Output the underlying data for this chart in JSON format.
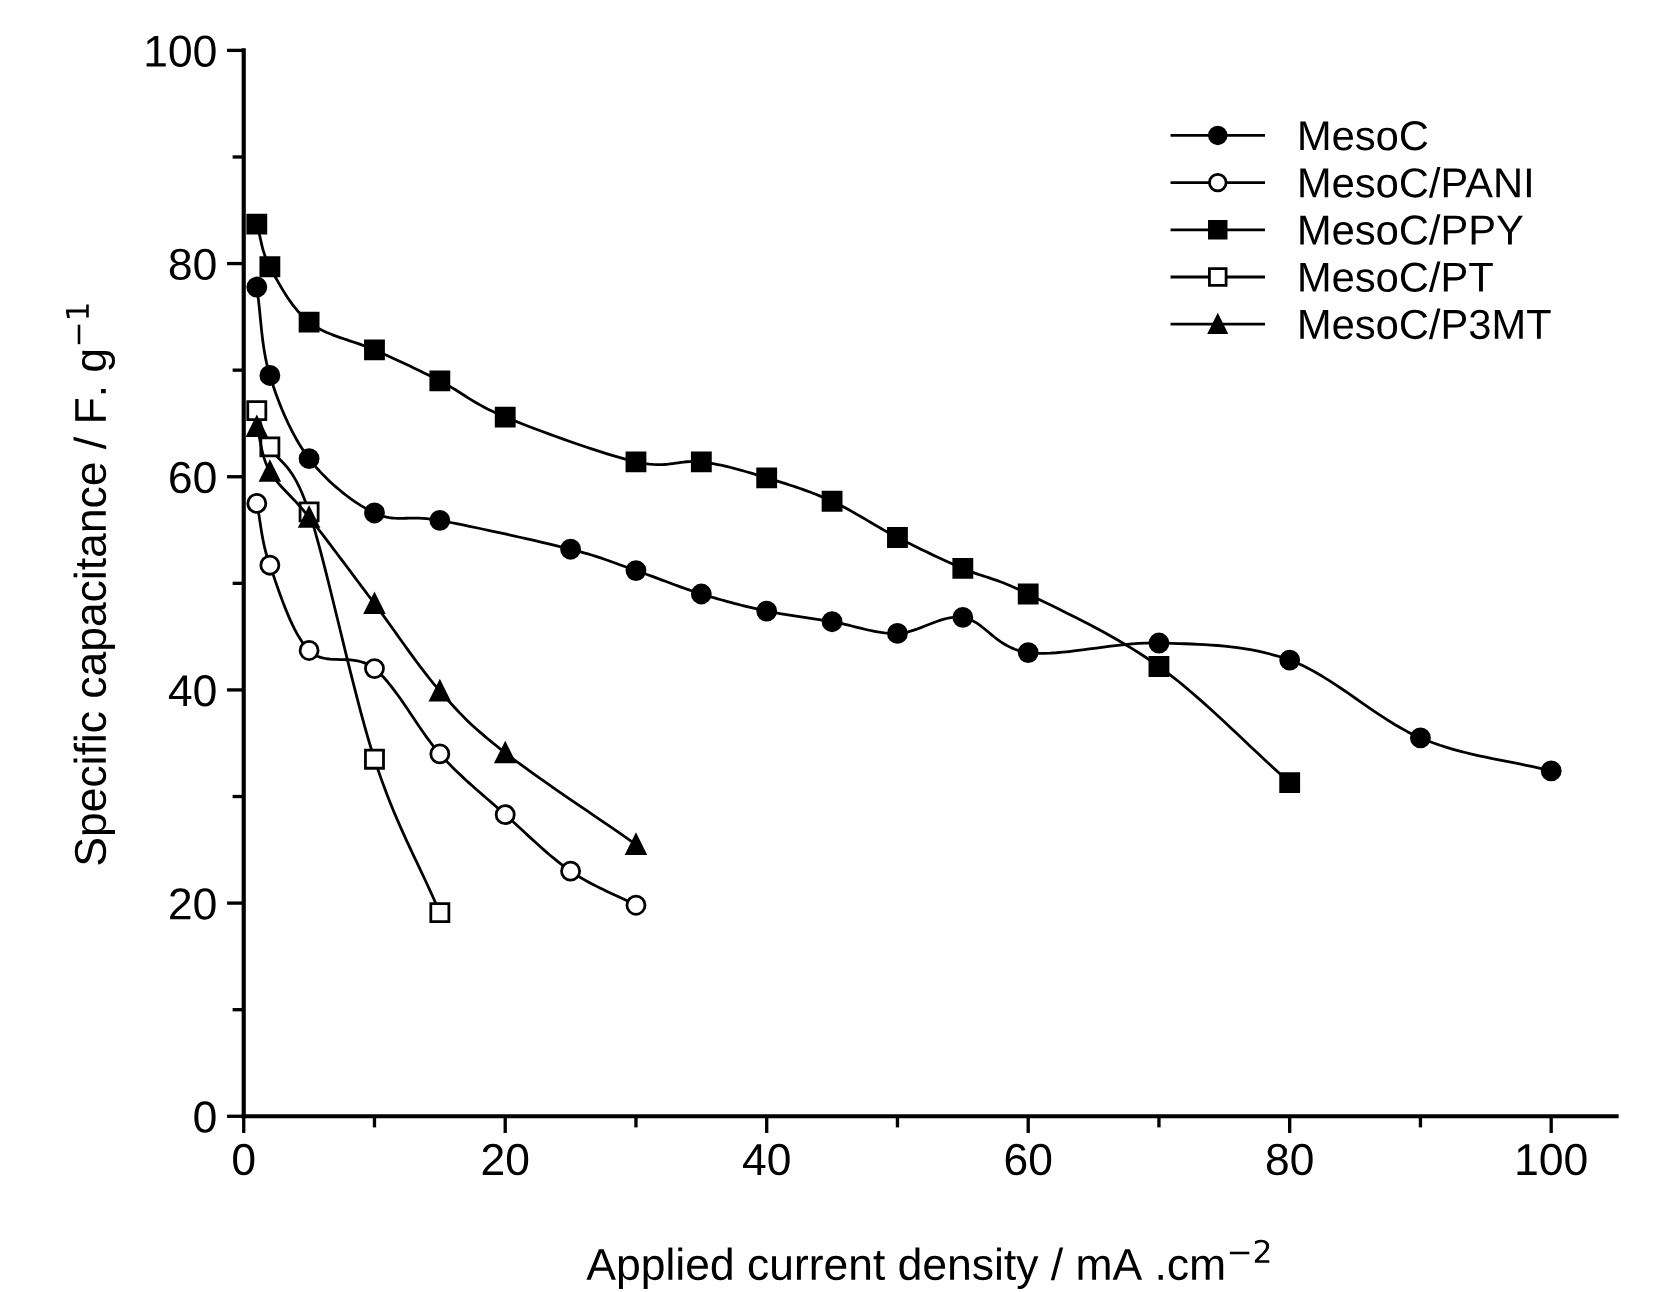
{
  "chart_data": {
    "type": "line",
    "xlabel": "Applied current density / mA .cm$^{−2}$",
    "ylabel": "Specific capacitance / F. g$^{−1}$",
    "xlim": [
      0,
      105
    ],
    "xticks": [
      0,
      20,
      40,
      60,
      80,
      100
    ],
    "ylim": [
      0,
      100
    ],
    "yticks": [
      0,
      20,
      40,
      60,
      80,
      100
    ],
    "grid": false,
    "legend": "top right",
    "line_style": "solid",
    "series": [
      {
        "name": "MesoC",
        "color": "#000000",
        "marker": "circle",
        "x": [
          1,
          2,
          5,
          10,
          15,
          25,
          30,
          35,
          40,
          45,
          50,
          55,
          60,
          70,
          80,
          90,
          100
        ],
        "values": [
          77.8,
          69.5,
          61.7,
          56.6,
          55.9,
          53.2,
          51.2,
          49.0,
          47.4,
          46.4,
          45.3,
          46.8,
          43.5,
          44.4,
          42.8,
          35.5,
          32.4
        ]
      },
      {
        "name": "MesoC/PANI",
        "color": "#000000",
        "marker": "circle",
        "x": [
          1,
          2,
          5,
          10,
          15,
          20,
          25,
          30
        ],
        "values": [
          57.5,
          51.7,
          43.7,
          42.0,
          34.0,
          28.3,
          23.0,
          19.8
        ]
      },
      {
        "name": "MesoC/PPY",
        "color": "#000000",
        "marker": "square",
        "x": [
          1,
          2,
          5,
          10,
          15,
          20,
          30,
          35,
          40,
          45,
          50,
          55,
          60,
          70,
          80
        ],
        "values": [
          83.7,
          79.7,
          74.5,
          71.9,
          69.0,
          65.6,
          61.4,
          61.4,
          59.9,
          57.7,
          54.3,
          51.4,
          49.0,
          42.2,
          31.3
        ]
      },
      {
        "name": "MesoC/PT",
        "color": "#000000",
        "marker": "square",
        "x": [
          1,
          2,
          5,
          10,
          15
        ],
        "values": [
          66.2,
          62.8,
          56.7,
          33.5,
          19.1
        ]
      },
      {
        "name": "MesoC/P3MT",
        "color": "#000000",
        "marker": "triangle",
        "x": [
          1,
          2,
          5,
          10,
          15,
          20,
          30
        ],
        "values": [
          64.7,
          60.5,
          56.2,
          48.1,
          39.9,
          34.1,
          25.5
        ]
      }
    ]
  }
}
